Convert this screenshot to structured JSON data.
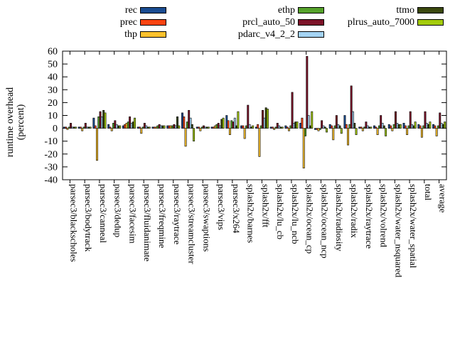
{
  "legend": {
    "items": [
      {
        "label": "rec",
        "color": "#1a4c91"
      },
      {
        "label": "prec",
        "color": "#fa4310"
      },
      {
        "label": "thp",
        "color": "#fbc12c"
      },
      {
        "label": "ethp",
        "color": "#56a22b"
      },
      {
        "label": "prcl_auto_50",
        "color": "#7c1228"
      },
      {
        "label": "pdarc_v4_2_2",
        "color": "#a4d3f3"
      },
      {
        "label": "ttmo",
        "color": "#3b490f"
      },
      {
        "label": "plrus_auto_7000",
        "color": "#a3cb0b"
      }
    ]
  },
  "y_axis": {
    "label_line1": "runtime overhead",
    "label_line2": "(percent)",
    "ticks": [
      -40,
      -30,
      -20,
      -10,
      0,
      10,
      20,
      30,
      40,
      50,
      60
    ]
  },
  "chart_data": {
    "type": "bar",
    "title": "",
    "xlabel": "",
    "ylabel": "runtime overhead (percent)",
    "ylim": [
      -40,
      60
    ],
    "grid": false,
    "legend_position": "top",
    "categories": [
      "parsec3/blackscholes",
      "parsec3/bodytrack",
      "parsec3/canneal",
      "parsec3/dedup",
      "parsec3/facesim",
      "parsec3/fluidanimate",
      "parsec3/freqmine",
      "parsec3/raytrace",
      "parsec3/streamcluster",
      "parsec3/swaptions",
      "parsec3/vips",
      "parsec3/x264",
      "splash2x/barnes",
      "splash2x/fft",
      "splash2x/lu_cb",
      "splash2x/lu_ncb",
      "splash2x/ocean_cp",
      "splash2x/ocean_ncp",
      "splash2x/radiosity",
      "splash2x/radix",
      "splash2x/raytrace",
      "splash2x/volrend",
      "splash2x/water_nsquared",
      "splash2x/water_spatial",
      "total",
      "average"
    ],
    "series": [
      {
        "name": "rec",
        "color": "#1a4c91",
        "values": [
          1,
          1,
          8,
          3,
          2,
          1,
          1,
          2,
          12,
          1,
          1,
          10,
          2,
          1,
          1,
          2,
          4,
          -1,
          3,
          10,
          1,
          2,
          3,
          4,
          3,
          3
        ]
      },
      {
        "name": "prec",
        "color": "#fa4310",
        "values": [
          1,
          1,
          2,
          1,
          3,
          1,
          1,
          2,
          9,
          1,
          1,
          6,
          2,
          3,
          1,
          1,
          8,
          -1,
          2,
          3,
          1,
          1,
          2,
          2,
          2,
          2
        ]
      },
      {
        "name": "thp",
        "color": "#fbc12c",
        "values": [
          -1,
          -2,
          -25,
          -2,
          4,
          -4,
          1,
          2,
          -14,
          -2,
          2,
          -5,
          -8,
          -22,
          -1,
          -2,
          -31,
          -2,
          -9,
          -13,
          -2,
          -5,
          -2,
          -5,
          -7,
          -6
        ]
      },
      {
        "name": "ethp",
        "color": "#56a22b",
        "values": [
          1,
          1,
          9,
          4,
          5,
          1,
          2,
          2,
          5,
          1,
          3,
          6,
          2,
          2,
          1,
          2,
          -6,
          -1,
          2,
          3,
          1,
          2,
          3,
          2,
          2,
          2
        ]
      },
      {
        "name": "prcl_auto_50",
        "color": "#7c1228",
        "values": [
          4,
          4,
          13,
          6,
          9,
          4,
          3,
          3,
          14,
          2,
          4,
          5,
          18,
          14,
          4,
          28,
          56,
          6,
          10,
          33,
          5,
          10,
          13,
          13,
          13,
          12
        ]
      },
      {
        "name": "pdarc_v4_2_2",
        "color": "#a4d3f3",
        "values": [
          1,
          1,
          9,
          3,
          4,
          2,
          2,
          2,
          8,
          1,
          2,
          8,
          3,
          8,
          2,
          4,
          10,
          2,
          3,
          13,
          2,
          4,
          4,
          3,
          4,
          4
        ]
      },
      {
        "name": "ttmo",
        "color": "#3b490f",
        "values": [
          1,
          1,
          14,
          2,
          5,
          1,
          2,
          9,
          3,
          1,
          7,
          2,
          1,
          16,
          1,
          5,
          2,
          1,
          2,
          4,
          1,
          2,
          3,
          2,
          3,
          3
        ]
      },
      {
        "name": "plrus_auto_7000",
        "color": "#a3cb0b",
        "values": [
          1,
          1,
          12,
          2,
          8,
          1,
          2,
          2,
          -10,
          1,
          8,
          13,
          2,
          15,
          1,
          5,
          13,
          -3,
          -4,
          -5,
          1,
          -6,
          3,
          5,
          5,
          5
        ]
      }
    ]
  }
}
